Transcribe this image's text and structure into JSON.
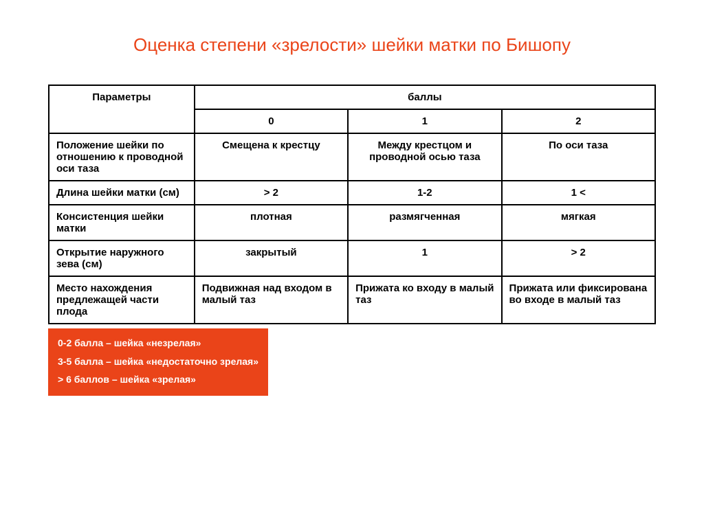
{
  "title": "Оценка степени «зрелости» шейки матки по Бишопу",
  "table": {
    "header": {
      "param_label": "Параметры",
      "scores_label": "баллы",
      "score_cols": [
        "0",
        "1",
        "2"
      ]
    },
    "rows": [
      {
        "label": "Положение шейки по отношению к проводной оси таза",
        "cells": [
          "Смещена к крестцу",
          "Между крестцом и проводной осью таза",
          "По оси таза"
        ]
      },
      {
        "label": "Длина шейки матки (см)",
        "cells": [
          "> 2",
          "1-2",
          "1 <"
        ]
      },
      {
        "label": "Консистенция шейки матки",
        "cells": [
          "плотная",
          "размягченная",
          "мягкая"
        ]
      },
      {
        "label": "Открытие наружного зева (см)",
        "cells": [
          "закрытый",
          "1",
          "> 2"
        ]
      },
      {
        "label": "Место нахождения предлежащей части плода",
        "cells": [
          "Подвижная над входом в малый таз",
          "Прижата ко входу в малый таз",
          "Прижата или фиксирована во входе в малый таз"
        ]
      }
    ]
  },
  "legend": [
    "0-2 балла – шейка «незрелая»",
    "3-5 балла – шейка «недостаточно зрелая»",
    "> 6 баллов – шейка «зрелая»"
  ],
  "colors": {
    "accent": "#ea4419",
    "border": "#000000",
    "background": "#ffffff",
    "legend_text": "#ffffff"
  }
}
